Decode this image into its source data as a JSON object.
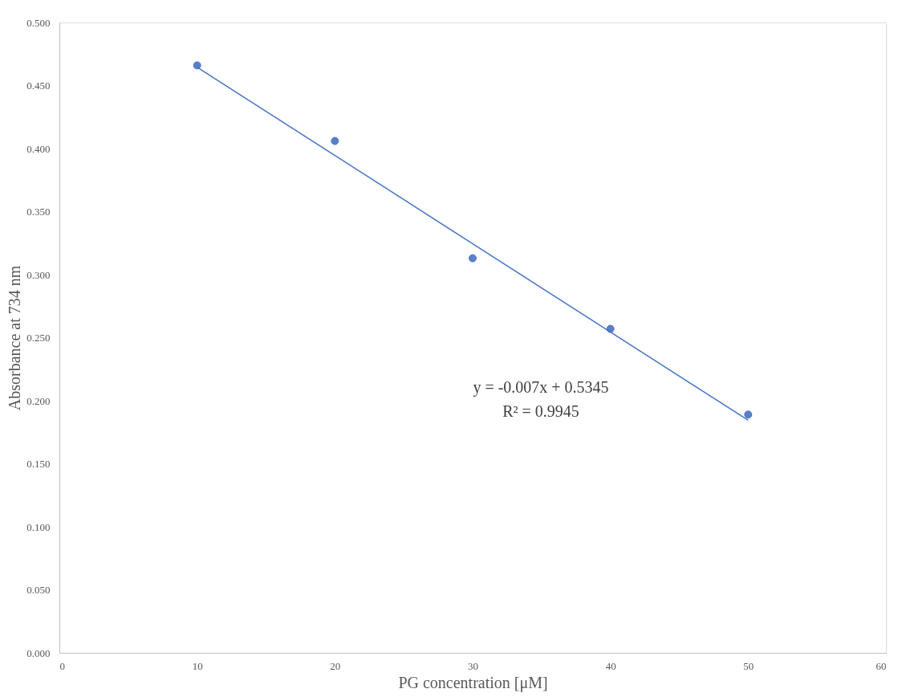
{
  "chart_data": {
    "type": "scatter",
    "xlabel": "PG concentration  [μM]",
    "ylabel": "Absorbance at 734 nm",
    "series": [
      {
        "color": "#5b7fc7",
        "marker": "circle",
        "x": [
          10,
          20,
          30,
          40,
          50
        ],
        "values": [
          0.466,
          0.406,
          0.313,
          0.257,
          0.189
        ]
      },
      {
        "type": "line",
        "color": "#4472c4",
        "marker": "none",
        "line_style": "solid",
        "x": [
          10,
          50
        ],
        "values": [
          0.4645,
          0.1845
        ]
      }
    ],
    "annotations": [
      "y = -0.007x + 0.5345",
      "R² = 0.9945"
    ],
    "xlim": [
      0,
      60
    ],
    "xticks": [
      0,
      10,
      20,
      30,
      40,
      50,
      60
    ],
    "ylim": [
      0,
      0.5
    ],
    "yticks": [
      {
        "value": 0,
        "label": "0.000"
      },
      {
        "value": 0.05,
        "label": "0.050"
      },
      {
        "value": 0.1,
        "label": "0.100"
      },
      {
        "value": 0.15,
        "label": "0.150"
      },
      {
        "value": 0.2,
        "label": "0.200"
      },
      {
        "value": 0.25,
        "label": "0.250"
      },
      {
        "value": 0.3,
        "label": "0.300"
      },
      {
        "value": 0.35,
        "label": "0.350"
      },
      {
        "value": 0.4,
        "label": "0.400"
      },
      {
        "value": 0.45,
        "label": "0.450"
      },
      {
        "value": 0.5,
        "label": "0.500"
      }
    ],
    "grid": false
  }
}
